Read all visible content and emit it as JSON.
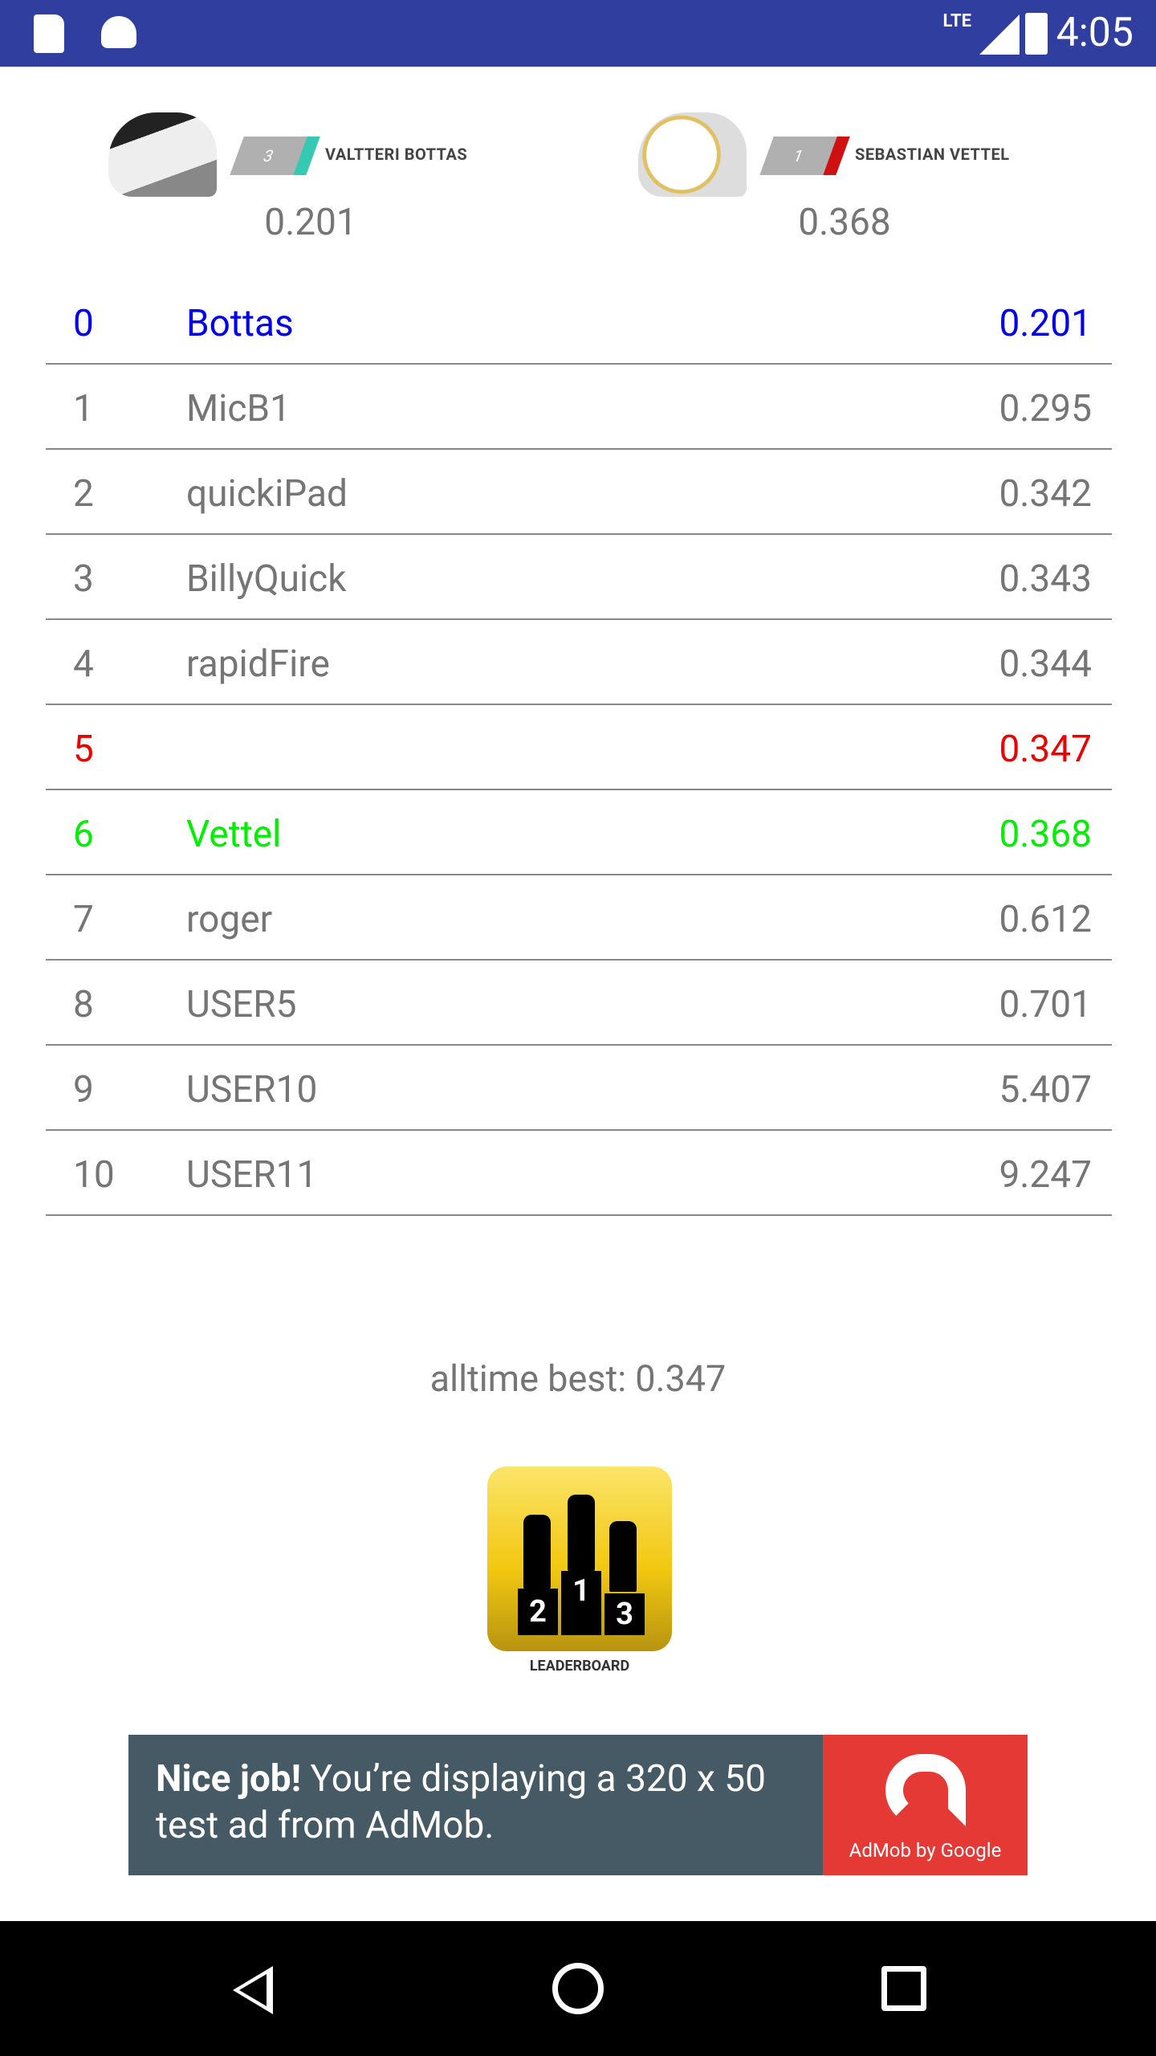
{
  "status_bar": {
    "time": "4:05",
    "network": "LTE",
    "icons": [
      "sd-card-icon",
      "android-icon",
      "signal-icon",
      "battery-charging-icon"
    ]
  },
  "drivers": [
    {
      "number": "3",
      "name": "VALTTERI BOTTAS",
      "score": "0.201",
      "team_color": "#35c9b3"
    },
    {
      "number": "1",
      "name": "SEBASTIAN VETTEL",
      "score": "0.368",
      "team_color": "#d01010"
    }
  ],
  "leaderboard": [
    {
      "pos": "0",
      "name": "Bottas",
      "time": "0.201",
      "color": "#0000ee"
    },
    {
      "pos": "1",
      "name": "MicB1",
      "time": "0.295",
      "color": "#757575"
    },
    {
      "pos": "2",
      "name": "quickiPad",
      "time": "0.342",
      "color": "#757575"
    },
    {
      "pos": "3",
      "name": "BillyQuick",
      "time": "0.343",
      "color": "#757575"
    },
    {
      "pos": "4",
      "name": "rapidFire",
      "time": "0.344",
      "color": "#757575"
    },
    {
      "pos": "5",
      "name": "",
      "time": "0.347",
      "color": "#ee0000"
    },
    {
      "pos": "6",
      "name": "Vettel",
      "time": "0.368",
      "color": "#00ee00"
    },
    {
      "pos": "7",
      "name": "roger",
      "time": "0.612",
      "color": "#757575"
    },
    {
      "pos": "8",
      "name": "USER5",
      "time": "0.701",
      "color": "#757575"
    },
    {
      "pos": "9",
      "name": "USER10",
      "time": "5.407",
      "color": "#757575"
    },
    {
      "pos": "10",
      "name": "USER11",
      "time": "9.247",
      "color": "#757575"
    }
  ],
  "alltime_best": "alltime best: 0.347",
  "leaderboard_button": {
    "label": "LEADERBOARD",
    "podium": [
      "2",
      "1",
      "3"
    ]
  },
  "ad": {
    "bold": "Nice job!",
    "text": " You’re displaying a 320 x 50 test ad from AdMob.",
    "brand": "AdMob by Google"
  }
}
